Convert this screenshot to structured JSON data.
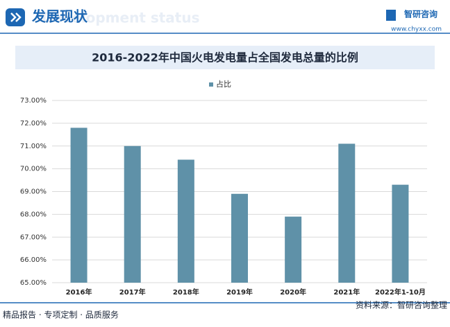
{
  "header": {
    "title": "发展现状",
    "watermark": "Development status",
    "brand": "智研咨询",
    "url": "www.chyxx.com"
  },
  "chart_data": {
    "type": "bar",
    "title": "2016-2022年中国火电发电量占全国发电总量的比例",
    "categories": [
      "2016年",
      "2017年",
      "2018年",
      "2019年",
      "2020年",
      "2021年",
      "2022年1-10月"
    ],
    "series": [
      {
        "name": "占比",
        "color": "#5f91a8",
        "values": [
          71.8,
          71.0,
          70.4,
          68.9,
          67.9,
          71.1,
          69.3
        ]
      }
    ],
    "ylim": [
      65,
      73
    ],
    "yticks": [
      {
        "value": 65,
        "label": "65.00%"
      },
      {
        "value": 66,
        "label": "66.00%"
      },
      {
        "value": 67,
        "label": "67.00%"
      },
      {
        "value": 68,
        "label": "68.00%"
      },
      {
        "value": 69,
        "label": "69.00%"
      },
      {
        "value": 70,
        "label": "70.00%"
      },
      {
        "value": 71,
        "label": "71.00%"
      },
      {
        "value": 72,
        "label": "72.00%"
      },
      {
        "value": 73,
        "label": "73.00%"
      }
    ],
    "grid": true,
    "legend": "top"
  },
  "footer": {
    "left": "精品报告 · 专项定制 · 品质服务",
    "right": "资料来源：智研咨询整理"
  }
}
